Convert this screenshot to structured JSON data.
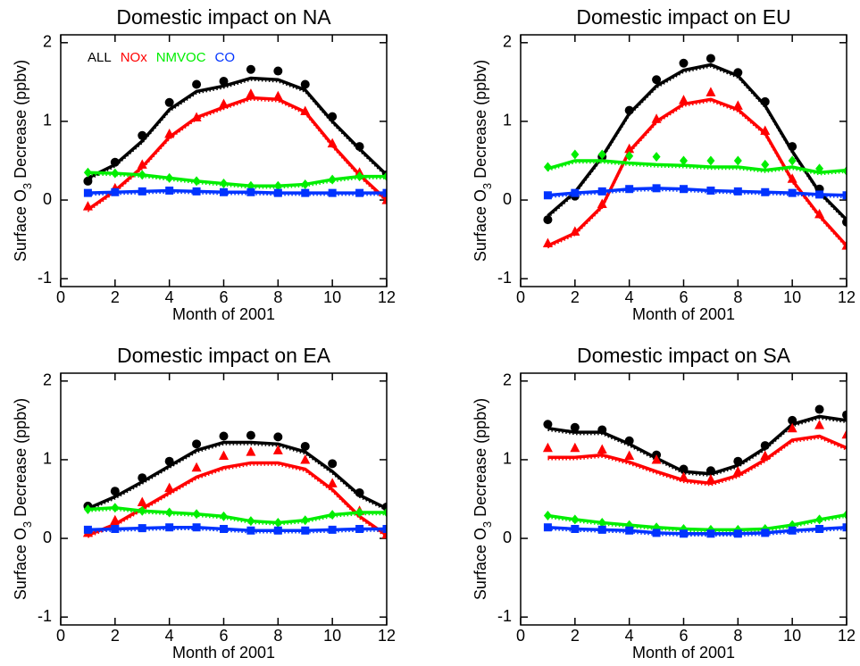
{
  "chart_data": [
    {
      "type": "line",
      "title": "Domestic impact on NA",
      "xlabel": "Month of 2001",
      "ylabel": [
        "Surface O",
        "3",
        " Decrease (ppbv)"
      ],
      "x": [
        1,
        2,
        3,
        4,
        5,
        6,
        7,
        8,
        9,
        10,
        11,
        12
      ],
      "xlim": [
        0,
        12
      ],
      "xticks": [
        0,
        2,
        4,
        6,
        8,
        10,
        12
      ],
      "ylim": [
        -1.1,
        2.1
      ],
      "yticks": [
        -1,
        0,
        1,
        2
      ],
      "legend": "upper left",
      "series": [
        {
          "name": "ALL",
          "color": "#000000",
          "marker": "circle",
          "values": [
            0.28,
            0.45,
            0.75,
            1.15,
            1.38,
            1.45,
            1.55,
            1.53,
            1.4,
            1.0,
            0.65,
            0.32
          ],
          "marker_values": [
            0.24,
            0.48,
            0.82,
            1.24,
            1.47,
            1.51,
            1.66,
            1.64,
            1.47,
            1.06,
            0.68,
            0.32
          ]
        },
        {
          "name": "NOx",
          "color": "#ff0000",
          "marker": "triangle",
          "values": [
            -0.12,
            0.12,
            0.42,
            0.8,
            1.05,
            1.18,
            1.3,
            1.28,
            1.12,
            0.7,
            0.32,
            0.0
          ],
          "marker_values": [
            -0.08,
            0.15,
            0.45,
            0.84,
            1.05,
            1.22,
            1.35,
            1.32,
            1.13,
            0.72,
            0.35,
            0.0
          ]
        },
        {
          "name": "NMVOC",
          "color": "#00ee00",
          "marker": "diamond",
          "values": [
            0.35,
            0.34,
            0.32,
            0.28,
            0.24,
            0.21,
            0.18,
            0.18,
            0.2,
            0.26,
            0.3,
            0.3
          ],
          "marker_values": [
            0.35,
            0.34,
            0.32,
            0.28,
            0.24,
            0.21,
            0.18,
            0.18,
            0.2,
            0.26,
            0.3,
            0.3
          ]
        },
        {
          "name": "CO",
          "color": "#0033ff",
          "marker": "square",
          "values": [
            0.09,
            0.1,
            0.11,
            0.12,
            0.11,
            0.1,
            0.1,
            0.09,
            0.09,
            0.09,
            0.09,
            0.09
          ],
          "marker_values": [
            0.09,
            0.1,
            0.11,
            0.12,
            0.11,
            0.1,
            0.1,
            0.09,
            0.09,
            0.09,
            0.09,
            0.09
          ]
        }
      ]
    },
    {
      "type": "line",
      "title": "Domestic impact on EU",
      "xlabel": "Month of 2001",
      "ylabel": [
        "Surface O",
        "3",
        " Decrease (ppbv)"
      ],
      "x": [
        1,
        2,
        3,
        4,
        5,
        6,
        7,
        8,
        9,
        10,
        11,
        12
      ],
      "xlim": [
        0,
        12
      ],
      "xticks": [
        0,
        2,
        4,
        6,
        8,
        10,
        12
      ],
      "ylim": [
        -1.1,
        2.1
      ],
      "yticks": [
        -1,
        0,
        1,
        2
      ],
      "series": [
        {
          "color": "#000000",
          "marker": "circle",
          "values": [
            -0.2,
            0.1,
            0.55,
            1.1,
            1.45,
            1.65,
            1.72,
            1.58,
            1.2,
            0.62,
            0.1,
            -0.25
          ],
          "marker_values": [
            -0.25,
            0.05,
            0.55,
            1.14,
            1.53,
            1.74,
            1.8,
            1.62,
            1.25,
            0.68,
            0.14,
            -0.28
          ]
        },
        {
          "color": "#ff0000",
          "marker": "triangle",
          "values": [
            -0.58,
            -0.42,
            -0.08,
            0.62,
            1.0,
            1.22,
            1.28,
            1.15,
            0.85,
            0.25,
            -0.2,
            -0.58
          ],
          "marker_values": [
            -0.55,
            -0.4,
            -0.05,
            0.65,
            1.03,
            1.27,
            1.37,
            1.2,
            0.88,
            0.27,
            -0.18,
            -0.58
          ]
        },
        {
          "color": "#00ee00",
          "marker": "diamond",
          "values": [
            0.4,
            0.5,
            0.5,
            0.47,
            0.45,
            0.44,
            0.42,
            0.42,
            0.38,
            0.42,
            0.35,
            0.38
          ],
          "marker_values": [
            0.42,
            0.58,
            0.58,
            0.56,
            0.55,
            0.5,
            0.5,
            0.5,
            0.45,
            0.5,
            0.4,
            0.37
          ]
        },
        {
          "color": "#0033ff",
          "marker": "square",
          "values": [
            0.06,
            0.09,
            0.11,
            0.14,
            0.15,
            0.14,
            0.12,
            0.11,
            0.1,
            0.09,
            0.07,
            0.06
          ],
          "marker_values": [
            0.06,
            0.09,
            0.11,
            0.14,
            0.15,
            0.14,
            0.12,
            0.11,
            0.1,
            0.09,
            0.07,
            0.06
          ]
        }
      ]
    },
    {
      "type": "line",
      "title": "Domestic impact on EA",
      "xlabel": "Month of 2001",
      "ylabel": [
        "Surface O",
        "3",
        " Decrease (ppbv)"
      ],
      "x": [
        1,
        2,
        3,
        4,
        5,
        6,
        7,
        8,
        9,
        10,
        11,
        12
      ],
      "xlim": [
        0,
        12
      ],
      "xticks": [
        0,
        2,
        4,
        6,
        8,
        10,
        12
      ],
      "ylim": [
        -1.1,
        2.1
      ],
      "yticks": [
        -1,
        0,
        1,
        2
      ],
      "series": [
        {
          "color": "#000000",
          "marker": "circle",
          "values": [
            0.38,
            0.53,
            0.72,
            0.92,
            1.12,
            1.22,
            1.22,
            1.2,
            1.1,
            0.85,
            0.55,
            0.38
          ],
          "marker_values": [
            0.41,
            0.6,
            0.77,
            0.98,
            1.2,
            1.3,
            1.31,
            1.29,
            1.17,
            0.95,
            0.58,
            0.4
          ]
        },
        {
          "color": "#ff0000",
          "marker": "triangle",
          "values": [
            0.04,
            0.18,
            0.38,
            0.58,
            0.78,
            0.9,
            0.96,
            0.96,
            0.88,
            0.62,
            0.28,
            0.04
          ],
          "marker_values": [
            0.07,
            0.23,
            0.46,
            0.64,
            0.9,
            1.05,
            1.1,
            1.12,
            1.0,
            0.7,
            0.35,
            0.05
          ]
        },
        {
          "color": "#00ee00",
          "marker": "diamond",
          "values": [
            0.37,
            0.39,
            0.35,
            0.33,
            0.31,
            0.28,
            0.22,
            0.2,
            0.23,
            0.3,
            0.33,
            0.33
          ],
          "marker_values": [
            0.37,
            0.39,
            0.35,
            0.33,
            0.31,
            0.28,
            0.22,
            0.2,
            0.23,
            0.3,
            0.33,
            0.33
          ]
        },
        {
          "color": "#0033ff",
          "marker": "square",
          "values": [
            0.11,
            0.12,
            0.13,
            0.14,
            0.14,
            0.12,
            0.1,
            0.1,
            0.1,
            0.11,
            0.12,
            0.12
          ],
          "marker_values": [
            0.11,
            0.12,
            0.13,
            0.14,
            0.14,
            0.12,
            0.1,
            0.1,
            0.1,
            0.11,
            0.12,
            0.12
          ]
        }
      ]
    },
    {
      "type": "line",
      "title": "Domestic impact on SA",
      "xlabel": "Month of 2001",
      "ylabel": [
        "Surface O",
        "3",
        " Decrease (ppbv)"
      ],
      "x": [
        1,
        2,
        3,
        4,
        5,
        6,
        7,
        8,
        9,
        10,
        11,
        12
      ],
      "xlim": [
        0,
        12
      ],
      "xticks": [
        0,
        2,
        4,
        6,
        8,
        10,
        12
      ],
      "ylim": [
        -1.1,
        2.1
      ],
      "yticks": [
        -1,
        0,
        1,
        2
      ],
      "series": [
        {
          "color": "#000000",
          "marker": "circle",
          "values": [
            1.4,
            1.35,
            1.35,
            1.2,
            1.02,
            0.85,
            0.82,
            0.93,
            1.15,
            1.45,
            1.55,
            1.5
          ],
          "marker_values": [
            1.45,
            1.41,
            1.38,
            1.24,
            1.06,
            0.88,
            0.86,
            0.98,
            1.18,
            1.5,
            1.64,
            1.57
          ]
        },
        {
          "color": "#ff0000",
          "marker": "triangle",
          "values": [
            1.03,
            1.03,
            1.06,
            0.97,
            0.85,
            0.74,
            0.7,
            0.8,
            1.0,
            1.25,
            1.3,
            1.15
          ],
          "marker_values": [
            1.15,
            1.15,
            1.13,
            1.05,
            1.0,
            0.78,
            0.75,
            0.85,
            1.05,
            1.4,
            1.44,
            1.32
          ]
        },
        {
          "color": "#00ee00",
          "marker": "diamond",
          "values": [
            0.29,
            0.24,
            0.2,
            0.17,
            0.14,
            0.12,
            0.11,
            0.11,
            0.12,
            0.17,
            0.24,
            0.3
          ],
          "marker_values": [
            0.29,
            0.24,
            0.2,
            0.17,
            0.14,
            0.12,
            0.11,
            0.11,
            0.12,
            0.17,
            0.24,
            0.3
          ]
        },
        {
          "color": "#0033ff",
          "marker": "square",
          "values": [
            0.14,
            0.12,
            0.11,
            0.1,
            0.07,
            0.06,
            0.06,
            0.06,
            0.07,
            0.1,
            0.12,
            0.14
          ],
          "marker_values": [
            0.14,
            0.12,
            0.11,
            0.1,
            0.07,
            0.06,
            0.06,
            0.06,
            0.07,
            0.1,
            0.12,
            0.14
          ]
        }
      ]
    }
  ]
}
